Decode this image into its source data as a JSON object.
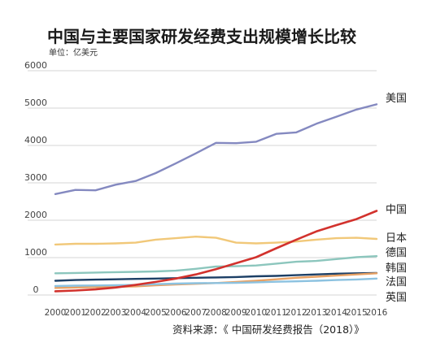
{
  "chart_data": {
    "type": "line",
    "title": "中国与主要国家研发经费支出规模增长比较",
    "unit": "单位：亿美元",
    "source": "资料来源：《 中国研发经费报告（2018）》",
    "x": [
      "2000",
      "2001",
      "2002",
      "2003",
      "2004",
      "2005",
      "2006",
      "2007",
      "2008",
      "2009",
      "2010",
      "2011",
      "2012",
      "2013",
      "2014",
      "2015",
      "2016"
    ],
    "y_ticks": [
      "0",
      "1000",
      "2000",
      "3000",
      "4000",
      "5000",
      "6000"
    ],
    "ylim": [
      0,
      6000
    ],
    "grid": true,
    "series": [
      {
        "name": "美国",
        "color": "#8489c0",
        "values": [
          2700,
          2810,
          2800,
          2950,
          3050,
          3260,
          3520,
          3790,
          4070,
          4060,
          4100,
          4310,
          4350,
          4580,
          4770,
          4960,
          5100
        ]
      },
      {
        "name": "中国",
        "color": "#d2322d",
        "values": [
          100,
          120,
          150,
          200,
          270,
          350,
          440,
          550,
          690,
          850,
          1010,
          1250,
          1480,
          1700,
          1870,
          2030,
          2250
        ]
      },
      {
        "name": "日本",
        "color": "#f1c879",
        "values": [
          1350,
          1370,
          1370,
          1380,
          1400,
          1480,
          1520,
          1560,
          1530,
          1400,
          1380,
          1400,
          1430,
          1480,
          1520,
          1530,
          1500
        ]
      },
      {
        "name": "德国",
        "color": "#8cc6bd",
        "values": [
          580,
          590,
          600,
          610,
          620,
          630,
          650,
          700,
          760,
          770,
          790,
          840,
          890,
          910,
          960,
          1010,
          1040
        ]
      },
      {
        "name": "韩国",
        "color": "#1c3f66",
        "values": [
          380,
          400,
          410,
          420,
          430,
          440,
          450,
          460,
          470,
          480,
          500,
          510,
          530,
          550,
          570,
          580,
          590
        ]
      },
      {
        "name": "法国",
        "color": "#e8a163",
        "values": [
          190,
          200,
          210,
          220,
          230,
          260,
          280,
          300,
          320,
          350,
          380,
          420,
          460,
          490,
          520,
          550,
          580
        ]
      },
      {
        "name": "英国",
        "color": "#8cc2e0",
        "values": [
          240,
          250,
          255,
          260,
          270,
          290,
          305,
          315,
          320,
          325,
          340,
          355,
          365,
          380,
          400,
          415,
          440
        ]
      }
    ]
  }
}
